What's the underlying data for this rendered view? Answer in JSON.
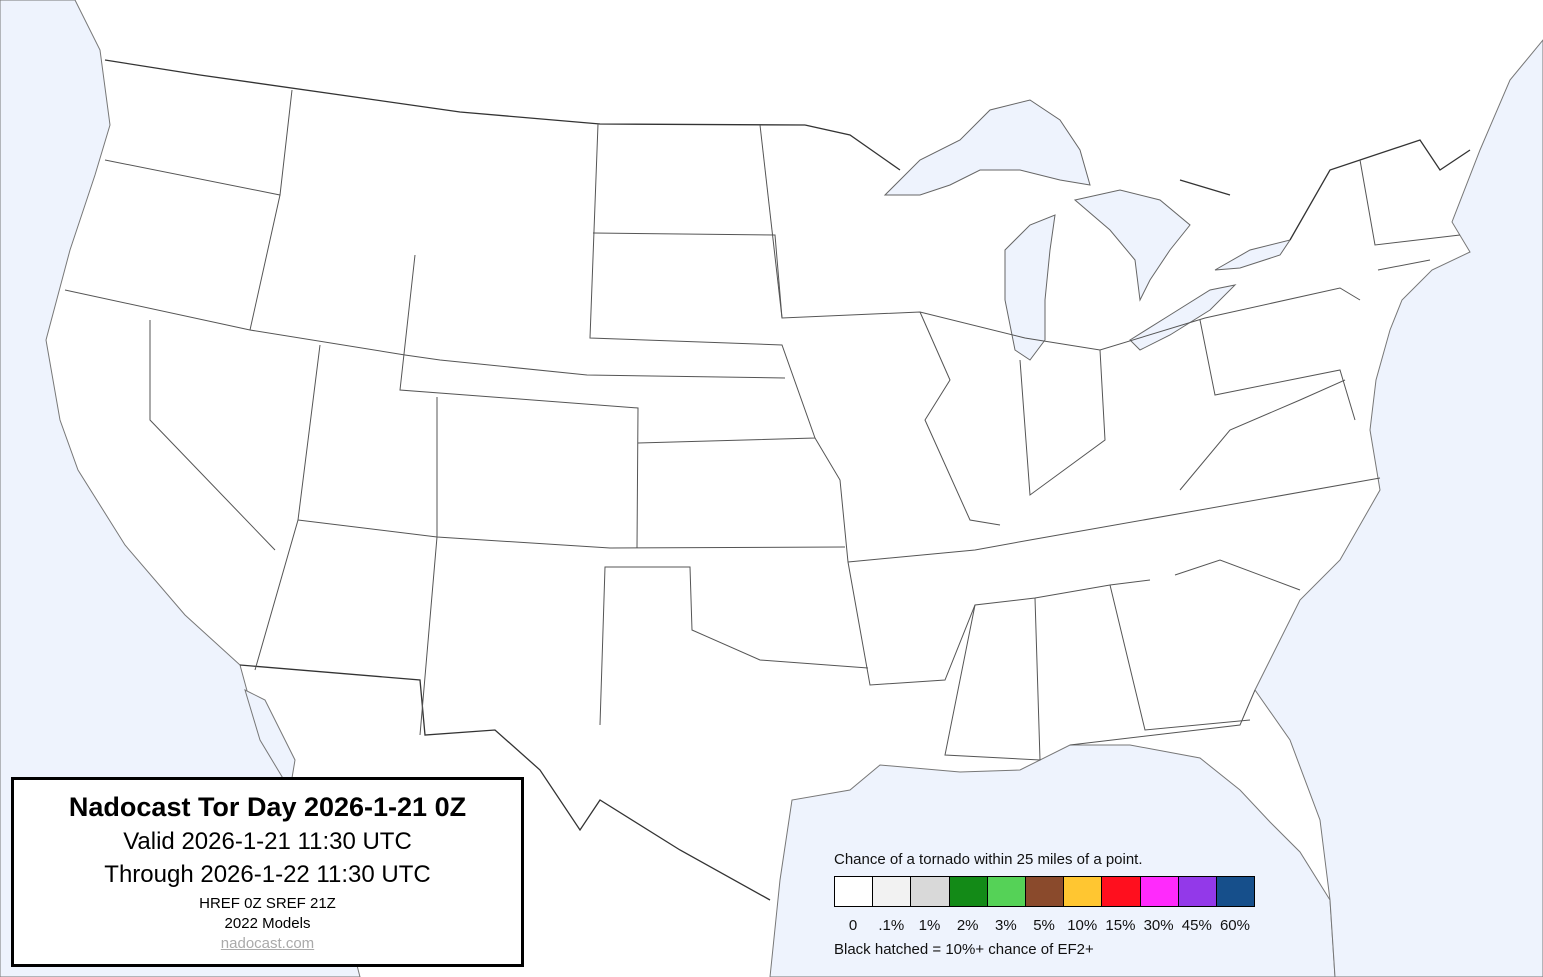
{
  "title_box": {
    "title": "Nadocast Tor Day 2026-1-21 0Z",
    "valid": "Valid 2026-1-21 11:30 UTC",
    "through": "Through 2026-1-22 11:30 UTC",
    "models": "HREF 0Z SREF 21Z",
    "model_year": "2022 Models",
    "link": "nadocast.com"
  },
  "legend": {
    "heading": "Chance of a tornado within 25 miles of a point.",
    "bins": [
      {
        "label": "0",
        "color": "#ffffff"
      },
      {
        "label": ".1%",
        "color": "#f2f2f2"
      },
      {
        "label": "1%",
        "color": "#d9d9d9"
      },
      {
        "label": "2%",
        "color": "#138a17"
      },
      {
        "label": "3%",
        "color": "#55d257"
      },
      {
        "label": "5%",
        "color": "#8a4a2c"
      },
      {
        "label": "10%",
        "color": "#ffc631"
      },
      {
        "label": "15%",
        "color": "#ff0f1e"
      },
      {
        "label": "30%",
        "color": "#ff2afc"
      },
      {
        "label": "45%",
        "color": "#9339e9"
      },
      {
        "label": "60%",
        "color": "#164f8b"
      }
    ],
    "note": "Black hatched = 10%+ chance of EF2+"
  },
  "map": {
    "water_color": "#eef3fd",
    "land_color": "#ffffff"
  }
}
